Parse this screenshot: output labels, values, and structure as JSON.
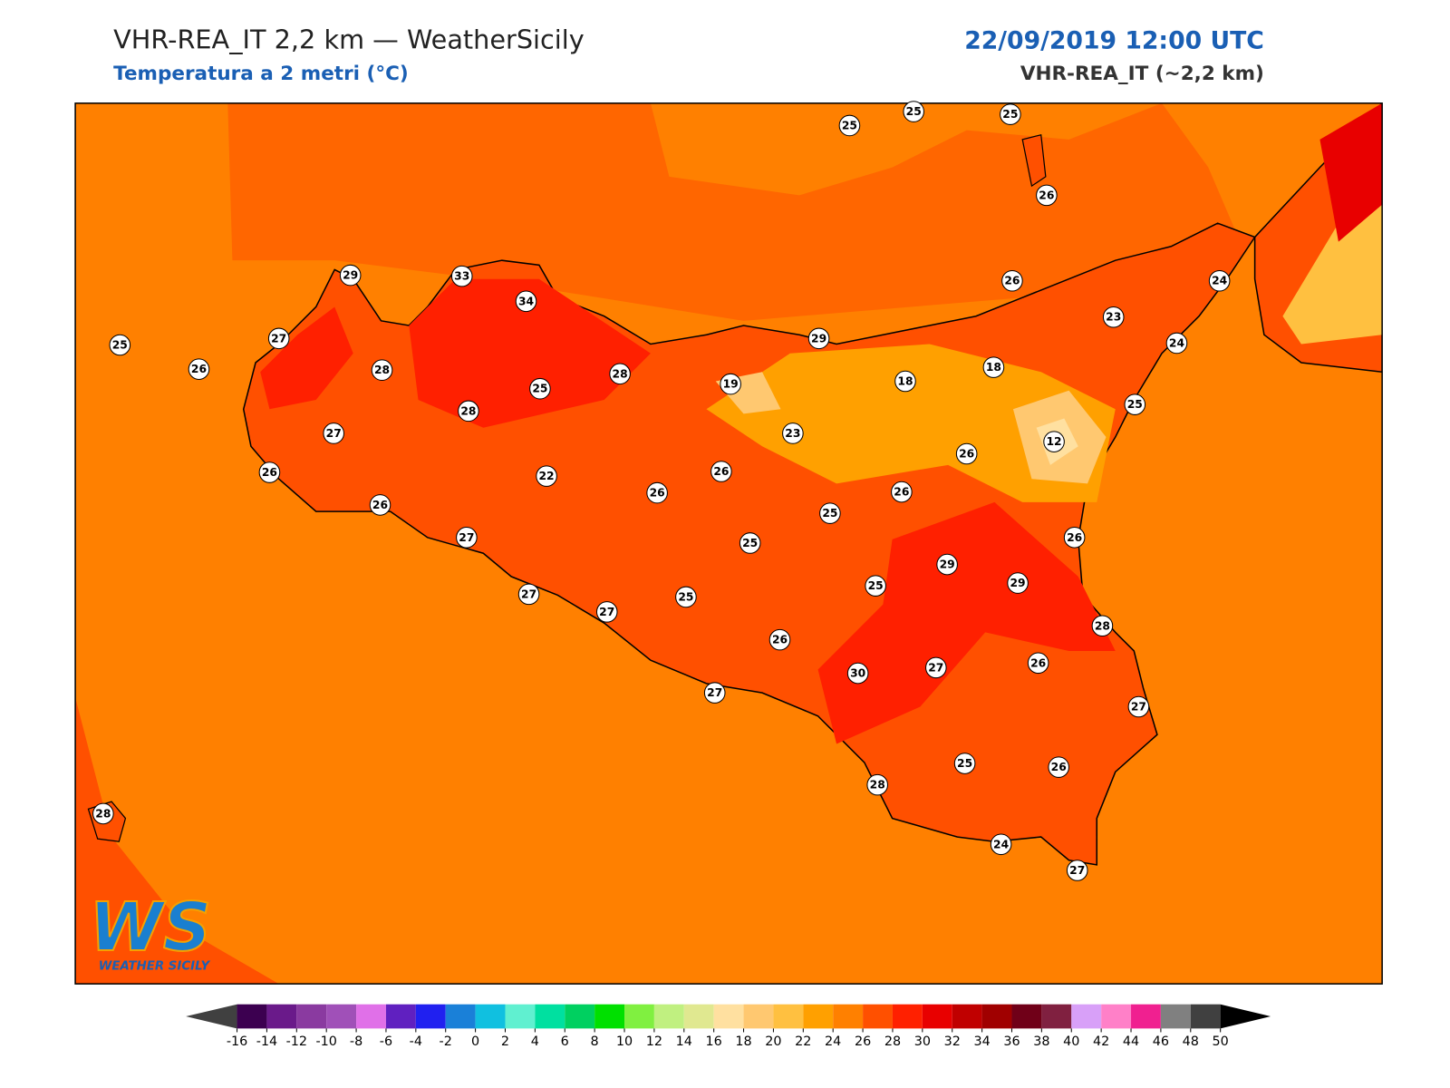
{
  "header": {
    "title": "VHR-REA_IT 2,2 km — WeatherSicily",
    "subtitle": "Temperatura a 2 metri (°C)",
    "date": "22/09/2019 12:00 UTC",
    "model": "VHR-REA_IT (~2,2 km)"
  },
  "stations": [
    25,
    25,
    25,
    26,
    29,
    33,
    34,
    26,
    24,
    23,
    25,
    27,
    29,
    24,
    26,
    28,
    28,
    19,
    18,
    18,
    25,
    28,
    25,
    27,
    23,
    12,
    26,
    26,
    22,
    26,
    26,
    26,
    26,
    25,
    27,
    26,
    25,
    29,
    29,
    25,
    27,
    25,
    27,
    28,
    26,
    30,
    27,
    26,
    27,
    27,
    25,
    26,
    28,
    28,
    24,
    27
  ],
  "logo": {
    "mark": "WS",
    "name": "WEATHER SICILY"
  },
  "colorbar": {
    "ticks": [
      -16,
      -14,
      -12,
      -10,
      -8,
      -6,
      -4,
      -2,
      0,
      2,
      4,
      6,
      8,
      10,
      12,
      14,
      16,
      18,
      20,
      22,
      24,
      26,
      28,
      30,
      32,
      34,
      36,
      38,
      40,
      42,
      44,
      46,
      48,
      50
    ],
    "colors": [
      "#404040",
      "#3c0050",
      "#6a1a8a",
      "#8a3aa0",
      "#a050b8",
      "#e070e8",
      "#6020c0",
      "#2020f0",
      "#1a80d8",
      "#10c0e0",
      "#60f0d0",
      "#00e0a0",
      "#00d060",
      "#00e000",
      "#80f040",
      "#c0f080",
      "#e0e890",
      "#ffe0a0",
      "#ffc870",
      "#ffc040",
      "#ffa000",
      "#ff8000",
      "#ff5000",
      "#ff2000",
      "#e80000",
      "#c00000",
      "#a00000",
      "#700018",
      "#802040",
      "#d8a0f8",
      "#ff80c8",
      "#f02090",
      "#808080",
      "#404040",
      "#000000"
    ]
  }
}
